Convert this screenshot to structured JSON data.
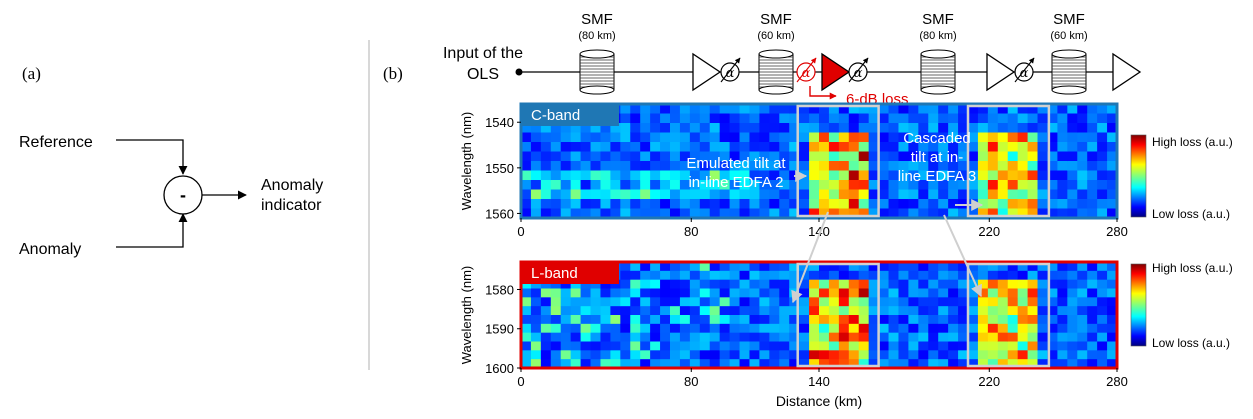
{
  "panel_a": {
    "label": "(a)",
    "reference_label": "Reference",
    "anomaly_label": "Anomaly",
    "operator_symbol": "-",
    "output_label_line1": "Anomaly",
    "output_label_line2": "indicator"
  },
  "panel_b": {
    "label": "(b)",
    "input_label_line1": "Input of the",
    "input_label_line2": "OLS",
    "alpha_symbol": "α",
    "spans": [
      {
        "name": "SMF",
        "length": "(80 km)"
      },
      {
        "name": "SMF",
        "length": "(60 km)"
      },
      {
        "name": "SMF",
        "length": "(80 km)"
      },
      {
        "name": "SMF",
        "length": "(60 km)"
      }
    ],
    "loss_annotation": "6-dB loss",
    "loss_color": "#e00000",
    "annotations": {
      "c_band_line1": "Emulated tilt at",
      "c_band_line2": "in-line EDFA 2",
      "l_band_line1": "Cascaded",
      "l_band_line2": "tilt at in-",
      "l_band_line3": "line EDFA 3"
    },
    "colorbar": {
      "high_label": "High loss (a.u.)",
      "low_label": "Low loss (a.u.)"
    }
  },
  "chart_data": [
    {
      "type": "heatmap",
      "band_label": "C-band",
      "band_color": "#1f77b4",
      "ylabel": "Wavelength (nm)",
      "xlabel": "",
      "x_ticks": [
        "0",
        "80",
        "140",
        "220",
        "280"
      ],
      "x_tick_values": [
        0,
        80,
        140,
        220,
        280
      ],
      "y_ticks": [
        "1540",
        "1550",
        "1560"
      ],
      "y_tick_values": [
        1540,
        1550,
        1560
      ],
      "xlim": [
        0,
        280
      ],
      "ylim": [
        1536,
        1561
      ],
      "highlight_regions": [
        {
          "x": [
            130,
            168
          ],
          "y": [
            1536,
            1561
          ]
        },
        {
          "x": [
            210,
            248
          ],
          "y": [
            1536,
            1561
          ]
        }
      ]
    },
    {
      "type": "heatmap",
      "band_label": "L-band",
      "band_color": "#e00000",
      "ylabel": "Wavelength (nm)",
      "xlabel": "Distance (km)",
      "x_ticks": [
        "0",
        "80",
        "140",
        "220",
        "280"
      ],
      "x_tick_values": [
        0,
        80,
        140,
        220,
        280
      ],
      "y_ticks": [
        "1580",
        "1590",
        "1600"
      ],
      "y_tick_values": [
        1580,
        1590,
        1600
      ],
      "xlim": [
        0,
        280
      ],
      "ylim": [
        1573,
        1600
      ],
      "highlight_regions": [
        {
          "x": [
            130,
            168
          ],
          "y": [
            1573,
            1600
          ]
        },
        {
          "x": [
            210,
            248
          ],
          "y": [
            1573,
            1600
          ]
        }
      ]
    }
  ]
}
